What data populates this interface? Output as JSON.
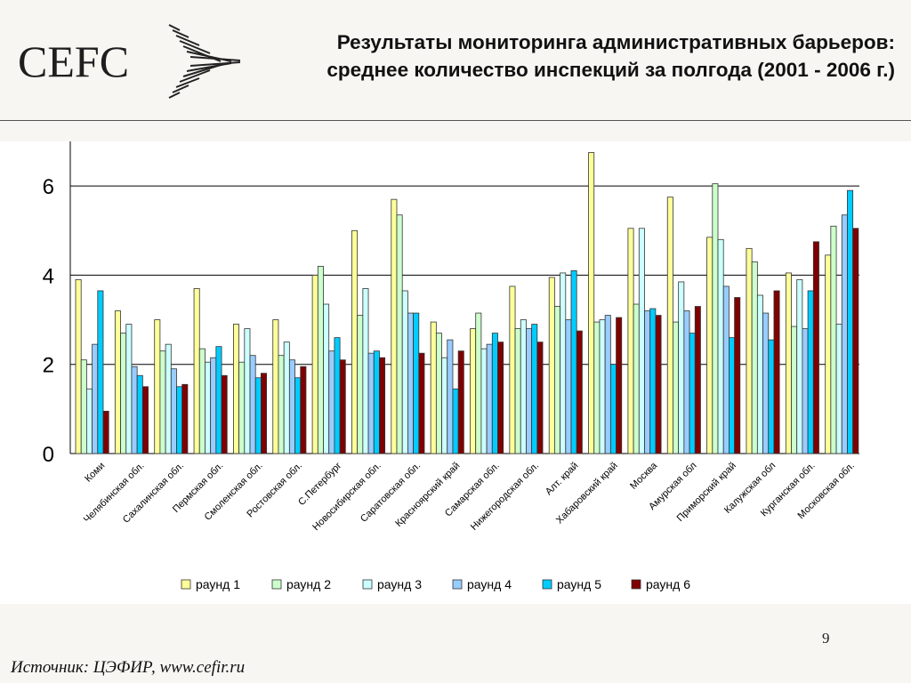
{
  "header": {
    "logo_text": "CEFC",
    "title": "Результаты мониторинга административных барьеров: среднее количество инспекций за полгода (2001 - 2006 г.)"
  },
  "footer": {
    "page_number": "9",
    "source": "Источник: ЦЭФИР, www.cefir.ru"
  },
  "chart_data": {
    "type": "bar",
    "title": "",
    "xlabel": "",
    "ylabel": "",
    "ylim": [
      0,
      7
    ],
    "yticks": [
      0,
      2,
      4,
      6
    ],
    "grid": "horizontal",
    "legend_position": "bottom",
    "categories": [
      "Коми",
      "Челябинская обл.",
      "Сахалинская обл.",
      "Пермская обл.",
      "Смоленская обл.",
      "Ростовская обл.",
      "С.Петербург",
      "Новосибирская обл.",
      "Саратовская обл.",
      "Красноярский край",
      "Самарская обл.",
      "Нижегородская обл.",
      "Алт. край",
      "Хабаровский край",
      "Москва",
      "Амурская обл",
      "Приморский край",
      "Калужская обл",
      "Курганская обл.",
      "Московская обл."
    ],
    "series": [
      {
        "name": "раунд 1",
        "color": "#ffff99",
        "values": [
          3.9,
          3.2,
          3.0,
          3.7,
          2.9,
          3.0,
          4.0,
          5.0,
          5.7,
          2.95,
          2.8,
          3.75,
          3.95,
          6.75,
          5.05,
          5.75,
          4.85,
          4.6,
          4.05,
          4.45
        ]
      },
      {
        "name": "раунд 2",
        "color": "#ccffcc",
        "values": [
          2.1,
          2.7,
          2.3,
          2.35,
          2.05,
          2.2,
          4.2,
          3.1,
          5.35,
          2.7,
          3.15,
          2.8,
          3.3,
          2.95,
          3.35,
          2.95,
          6.05,
          4.3,
          2.85,
          5.1
        ]
      },
      {
        "name": "раунд 3",
        "color": "#ccffff",
        "values": [
          1.45,
          2.9,
          2.45,
          2.05,
          2.8,
          2.5,
          3.35,
          3.7,
          3.65,
          2.15,
          2.35,
          3.0,
          4.05,
          3.0,
          5.05,
          3.85,
          4.8,
          3.55,
          3.9,
          2.9
        ]
      },
      {
        "name": "раунд 4",
        "color": "#99ccff",
        "values": [
          2.45,
          1.95,
          1.9,
          2.15,
          2.2,
          2.1,
          2.3,
          2.25,
          3.15,
          2.55,
          2.45,
          2.8,
          3.0,
          3.1,
          3.2,
          3.2,
          3.75,
          3.15,
          2.8,
          5.35
        ]
      },
      {
        "name": "раунд 5",
        "color": "#00ccff",
        "values": [
          3.65,
          1.75,
          1.5,
          2.4,
          1.7,
          1.7,
          2.6,
          2.3,
          3.15,
          1.45,
          2.7,
          2.9,
          4.1,
          2.0,
          3.25,
          2.7,
          2.6,
          2.55,
          3.65,
          5.9
        ]
      },
      {
        "name": "раунд 6",
        "color": "#800000",
        "values": [
          0.95,
          1.5,
          1.55,
          1.75,
          1.8,
          1.95,
          2.1,
          2.15,
          2.25,
          2.3,
          2.5,
          2.5,
          2.75,
          3.05,
          3.1,
          3.3,
          3.5,
          3.65,
          4.75,
          5.05
        ]
      }
    ]
  }
}
